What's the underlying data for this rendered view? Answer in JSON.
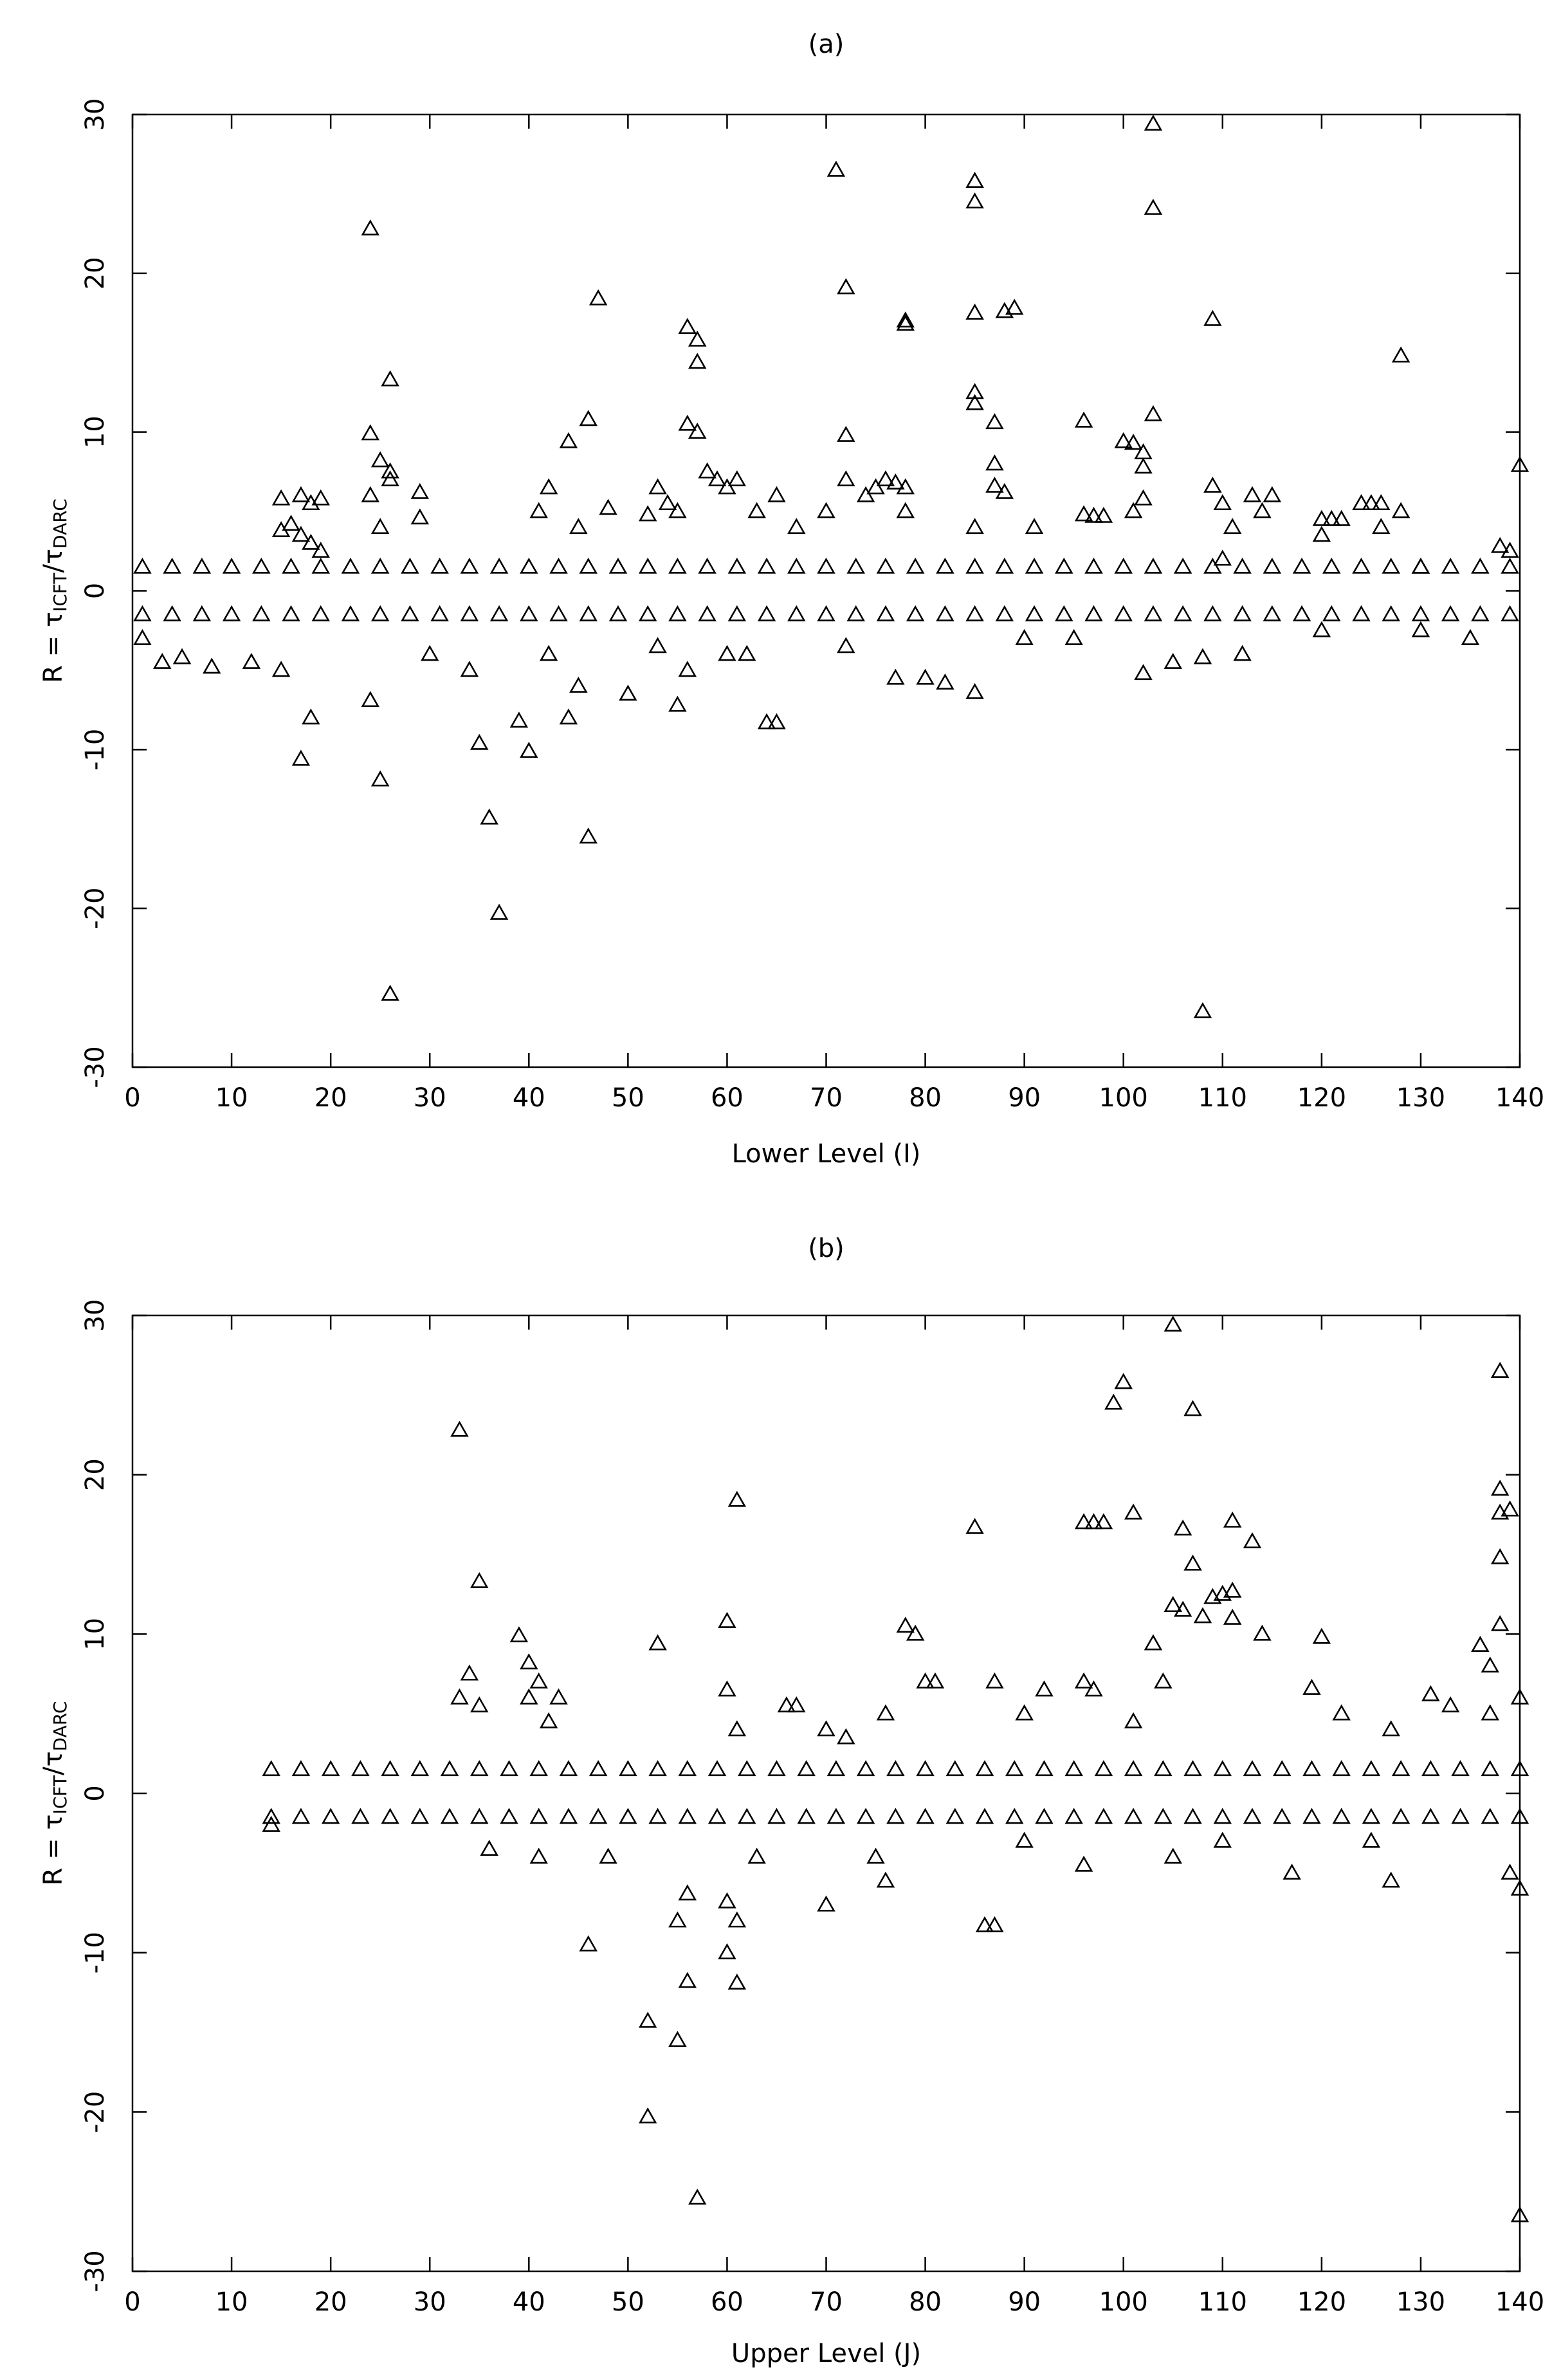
{
  "chart_data": [
    {
      "type": "scatter",
      "title": "(a)",
      "x_label": "Lower Level (I)",
      "y_label": {
        "prefix": "R = τ",
        "sub1": "ICFT",
        "mid": "/τ",
        "sub2": "DARC"
      },
      "marker": "triangle",
      "color": "#000000",
      "xlim": [
        0,
        140
      ],
      "ylim": [
        -30,
        30
      ],
      "xticks": [
        0,
        10,
        20,
        30,
        40,
        50,
        60,
        70,
        80,
        90,
        100,
        110,
        120,
        130,
        140
      ],
      "yticks": [
        -30,
        -20,
        -10,
        0,
        10,
        20,
        30
      ],
      "x": [
        24,
        24,
        24,
        25,
        26,
        26,
        25,
        26,
        29,
        29,
        15,
        17,
        18,
        19,
        15,
        16,
        17,
        18,
        19,
        42,
        44,
        46,
        47,
        48,
        41,
        45,
        52,
        53,
        54,
        55,
        56,
        57,
        57,
        56,
        57,
        58,
        59,
        60,
        61,
        63,
        65,
        67,
        70,
        71,
        72,
        72,
        72,
        74,
        75,
        76,
        77,
        78,
        78,
        78,
        78,
        85,
        85,
        85,
        85,
        85,
        87,
        87,
        87,
        88,
        88,
        89,
        85,
        91,
        96,
        100,
        101,
        102,
        102,
        103,
        103,
        103,
        101,
        102,
        96,
        97,
        98,
        109,
        109,
        110,
        111,
        113,
        114,
        115,
        110,
        120,
        121,
        122,
        124,
        125,
        126,
        128,
        128,
        130,
        138,
        139,
        140,
        120,
        126,
        17,
        18,
        24,
        25,
        26,
        35,
        36,
        37,
        39,
        40,
        44,
        45,
        46,
        50,
        55,
        56,
        60,
        64,
        65,
        77,
        80,
        82,
        85,
        102,
        105,
        108,
        108,
        1,
        3,
        5,
        8,
        12,
        15,
        30,
        34,
        42,
        53,
        62,
        72,
        90,
        95,
        112,
        120,
        130,
        135,
        1,
        4,
        7,
        10,
        13,
        16,
        19,
        22,
        25,
        28,
        31,
        34,
        37,
        40,
        43,
        46,
        49,
        52,
        55,
        58,
        61,
        64,
        67,
        70,
        73,
        76,
        79,
        82,
        85,
        88,
        91,
        94,
        97,
        100,
        103,
        106,
        109,
        112,
        115,
        118,
        121,
        124,
        127,
        130,
        133,
        136,
        139,
        1,
        4,
        7,
        10,
        13,
        16,
        19,
        22,
        25,
        28,
        31,
        34,
        37,
        40,
        43,
        46,
        49,
        52,
        55,
        58,
        61,
        64,
        67,
        70,
        73,
        76,
        79,
        82,
        85,
        88,
        91,
        94,
        97,
        100,
        103,
        106,
        109,
        112,
        115,
        118,
        121,
        124,
        127,
        130,
        133,
        136,
        139
      ],
      "values": [
        22.8,
        9.9,
        6,
        8.2,
        7.5,
        13.3,
        4,
        7,
        6.2,
        4.6,
        5.8,
        6,
        5.5,
        5.8,
        3.8,
        4.2,
        3.5,
        3,
        2.5,
        6.5,
        9.4,
        10.8,
        18.4,
        5.2,
        5,
        4,
        4.8,
        6.5,
        5.5,
        5,
        16.6,
        15.8,
        14.4,
        10.5,
        10,
        7.5,
        7,
        6.5,
        7,
        5,
        6,
        4,
        5,
        26.5,
        19.1,
        9.8,
        7,
        6,
        6.5,
        7,
        6.8,
        17,
        16.8,
        6.5,
        5,
        25.8,
        24.5,
        17.5,
        12.5,
        11.8,
        10.6,
        8,
        6.6,
        6.2,
        17.6,
        17.8,
        4,
        4,
        10.7,
        9.4,
        9.3,
        8.7,
        7.8,
        29.4,
        24.1,
        11.1,
        5,
        5.8,
        4.8,
        4.7,
        4.7,
        17.1,
        6.6,
        5.5,
        4,
        6,
        5,
        6,
        2,
        4.5,
        4.5,
        4.5,
        5.5,
        5.5,
        5.5,
        14.8,
        5,
        1.5,
        2.8,
        2.5,
        7.9,
        3.5,
        4,
        -10.6,
        -8,
        -6.9,
        -11.9,
        -25.4,
        -9.6,
        -14.3,
        -20.3,
        -8.2,
        -10.1,
        -8,
        -6,
        -15.5,
        -6.5,
        -7.2,
        -5,
        -4,
        -8.3,
        -8.3,
        -5.5,
        -5.5,
        -5.8,
        -6.4,
        -5.2,
        -4.5,
        -26.5,
        -4.2,
        -3,
        -4.5,
        -4.2,
        -4.8,
        -4.5,
        -5,
        -4,
        -5,
        -4,
        -3.5,
        -4,
        -3.5,
        -3,
        -3,
        -4,
        -2.5,
        -2.5,
        -3,
        1.5,
        1.5,
        1.5,
        1.5,
        1.5,
        1.5,
        1.5,
        1.5,
        1.5,
        1.5,
        1.5,
        1.5,
        1.5,
        1.5,
        1.5,
        1.5,
        1.5,
        1.5,
        1.5,
        1.5,
        1.5,
        1.5,
        1.5,
        1.5,
        1.5,
        1.5,
        1.5,
        1.5,
        1.5,
        1.5,
        1.5,
        1.5,
        1.5,
        1.5,
        1.5,
        1.5,
        1.5,
        1.5,
        1.5,
        1.5,
        1.5,
        1.5,
        1.5,
        1.5,
        1.5,
        1.5,
        1.5,
        -1.5,
        -1.5,
        -1.5,
        -1.5,
        -1.5,
        -1.5,
        -1.5,
        -1.5,
        -1.5,
        -1.5,
        -1.5,
        -1.5,
        -1.5,
        -1.5,
        -1.5,
        -1.5,
        -1.5,
        -1.5,
        -1.5,
        -1.5,
        -1.5,
        -1.5,
        -1.5,
        -1.5,
        -1.5,
        -1.5,
        -1.5,
        -1.5,
        -1.5,
        -1.5,
        -1.5,
        -1.5,
        -1.5,
        -1.5,
        -1.5,
        -1.5,
        -1.5,
        -1.5,
        -1.5,
        -1.5,
        -1.5,
        -1.5,
        -1.5,
        -1.5,
        -1.5,
        -1.5,
        -1.5
      ]
    },
    {
      "type": "scatter",
      "title": "(b)",
      "x_label": "Upper Level (J)",
      "y_label": {
        "prefix": "R = τ",
        "sub1": "ICFT",
        "mid": "/τ",
        "sub2": "DARC"
      },
      "marker": "triangle",
      "color": "#000000",
      "xlim": [
        0,
        140
      ],
      "ylim": [
        -30,
        30
      ],
      "xticks": [
        0,
        10,
        20,
        30,
        40,
        50,
        60,
        70,
        80,
        90,
        100,
        110,
        120,
        130,
        140
      ],
      "yticks": [
        -30,
        -20,
        -10,
        0,
        10,
        20,
        30
      ],
      "x": [
        33,
        33,
        34,
        35,
        35,
        39,
        40,
        40,
        41,
        42,
        43,
        53,
        60,
        61,
        60,
        61,
        66,
        67,
        70,
        72,
        76,
        78,
        79,
        80,
        81,
        85,
        87,
        90,
        92,
        96,
        97,
        98,
        99,
        100,
        101,
        96,
        97,
        101,
        103,
        104,
        105,
        105,
        106,
        106,
        107,
        107,
        108,
        109,
        110,
        111,
        111,
        111,
        113,
        114,
        120,
        122,
        119,
        127,
        131,
        133,
        136,
        137,
        138,
        138,
        138,
        138,
        138,
        139,
        140,
        137,
        46,
        52,
        52,
        55,
        55,
        56,
        57,
        56,
        60,
        61,
        60,
        61,
        70,
        76,
        86,
        87,
        96,
        105,
        117,
        127,
        140,
        140,
        139,
        14,
        36,
        41,
        48,
        63,
        75,
        90,
        110,
        125,
        14,
        17,
        20,
        23,
        26,
        29,
        32,
        35,
        38,
        41,
        44,
        47,
        50,
        53,
        56,
        59,
        62,
        65,
        68,
        71,
        74,
        77,
        80,
        83,
        86,
        89,
        92,
        95,
        98,
        101,
        104,
        107,
        110,
        113,
        116,
        119,
        122,
        125,
        128,
        131,
        134,
        137,
        140,
        14,
        17,
        20,
        23,
        26,
        29,
        32,
        35,
        38,
        41,
        44,
        47,
        50,
        53,
        56,
        59,
        62,
        65,
        68,
        71,
        74,
        77,
        80,
        83,
        86,
        89,
        92,
        95,
        98,
        101,
        104,
        107,
        110,
        113,
        116,
        119,
        122,
        125,
        128,
        131,
        134,
        137,
        140
      ],
      "values": [
        22.8,
        6,
        7.5,
        13.3,
        5.5,
        9.9,
        8.2,
        6,
        7,
        4.5,
        6,
        9.4,
        10.8,
        18.4,
        6.5,
        4,
        5.5,
        5.5,
        4,
        3.5,
        5,
        10.5,
        10,
        7,
        7,
        16.7,
        7,
        5,
        6.5,
        17,
        17,
        17,
        24.5,
        25.8,
        17.6,
        7,
        6.5,
        4.5,
        9.4,
        7,
        29.4,
        11.8,
        16.6,
        11.5,
        24.1,
        14.4,
        11.1,
        12.3,
        12.5,
        17.1,
        12.7,
        11,
        15.8,
        10,
        9.8,
        5,
        6.6,
        4,
        6.2,
        5.5,
        9.3,
        8,
        26.5,
        19.1,
        17.6,
        14.8,
        10.6,
        17.8,
        6,
        5,
        -9.5,
        -14.3,
        -20.3,
        -15.5,
        -8,
        -11.8,
        -25.4,
        -6.3,
        -10,
        -11.9,
        -6.8,
        -8,
        -7,
        -5.5,
        -8.3,
        -8.3,
        -4.5,
        -4,
        -5,
        -5.5,
        -26.5,
        -6,
        -5,
        -2,
        -3.5,
        -4,
        -4,
        -4,
        -4,
        -3,
        -3,
        -3,
        1.5,
        1.5,
        1.5,
        1.5,
        1.5,
        1.5,
        1.5,
        1.5,
        1.5,
        1.5,
        1.5,
        1.5,
        1.5,
        1.5,
        1.5,
        1.5,
        1.5,
        1.5,
        1.5,
        1.5,
        1.5,
        1.5,
        1.5,
        1.5,
        1.5,
        1.5,
        1.5,
        1.5,
        1.5,
        1.5,
        1.5,
        1.5,
        1.5,
        1.5,
        1.5,
        1.5,
        1.5,
        1.5,
        1.5,
        1.5,
        1.5,
        1.5,
        1.5,
        -1.5,
        -1.5,
        -1.5,
        -1.5,
        -1.5,
        -1.5,
        -1.5,
        -1.5,
        -1.5,
        -1.5,
        -1.5,
        -1.5,
        -1.5,
        -1.5,
        -1.5,
        -1.5,
        -1.5,
        -1.5,
        -1.5,
        -1.5,
        -1.5,
        -1.5,
        -1.5,
        -1.5,
        -1.5,
        -1.5,
        -1.5,
        -1.5,
        -1.5,
        -1.5,
        -1.5,
        -1.5,
        -1.5,
        -1.5,
        -1.5,
        -1.5,
        -1.5,
        -1.5,
        -1.5,
        -1.5,
        -1.5,
        -1.5,
        -1.5
      ]
    }
  ]
}
